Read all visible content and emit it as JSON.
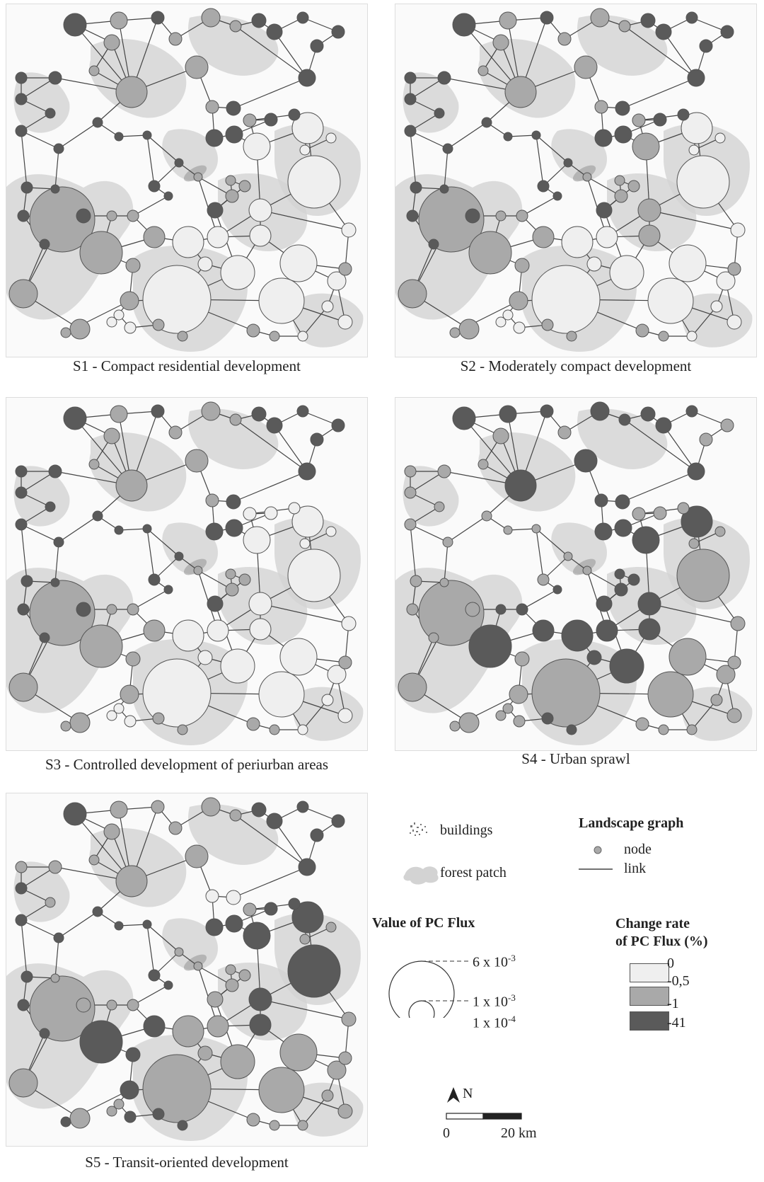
{
  "panels": [
    {
      "id": "S1",
      "caption": "S1 - Compact residential development"
    },
    {
      "id": "S2",
      "caption": "S2 - Moderately compact development"
    },
    {
      "id": "S3",
      "caption": "S3 - Controlled development of periurban areas"
    },
    {
      "id": "S4",
      "caption": "S4 - Urban sprawl"
    },
    {
      "id": "S5",
      "caption": "S5 - Transit-oriented development"
    }
  ],
  "legend": {
    "buildings": "buildings",
    "forest_patch": "forest patch",
    "landscape_graph_title": "Landscape graph",
    "node": "node",
    "link": "link",
    "pc_flux_title": "Value of PC Flux",
    "pc_flux_values": [
      {
        "base": "6 x 10",
        "exp": "-3"
      },
      {
        "base": "1 x 10",
        "exp": "-3"
      },
      {
        "base": "1 x 10",
        "exp": "-4"
      }
    ],
    "change_rate_title_line1": "Change rate",
    "change_rate_title_line2": "of PC Flux (%)",
    "change_rate_classes": [
      {
        "label": "0",
        "color": "#efefef"
      },
      {
        "label": "-0,5",
        "color": "#a9a9a9"
      },
      {
        "label": "-1",
        "color": "#a9a9a9"
      },
      {
        "label": "-41",
        "color": "#5a5a5a"
      }
    ],
    "north_label": "N",
    "scale_start": "0",
    "scale_end": "20 km"
  },
  "colors": {
    "forest": "#d3d3d3",
    "link": "#444444",
    "class_0": "#efefef",
    "class_mid": "#a9a9a9",
    "class_high": "#5a5a5a"
  }
}
